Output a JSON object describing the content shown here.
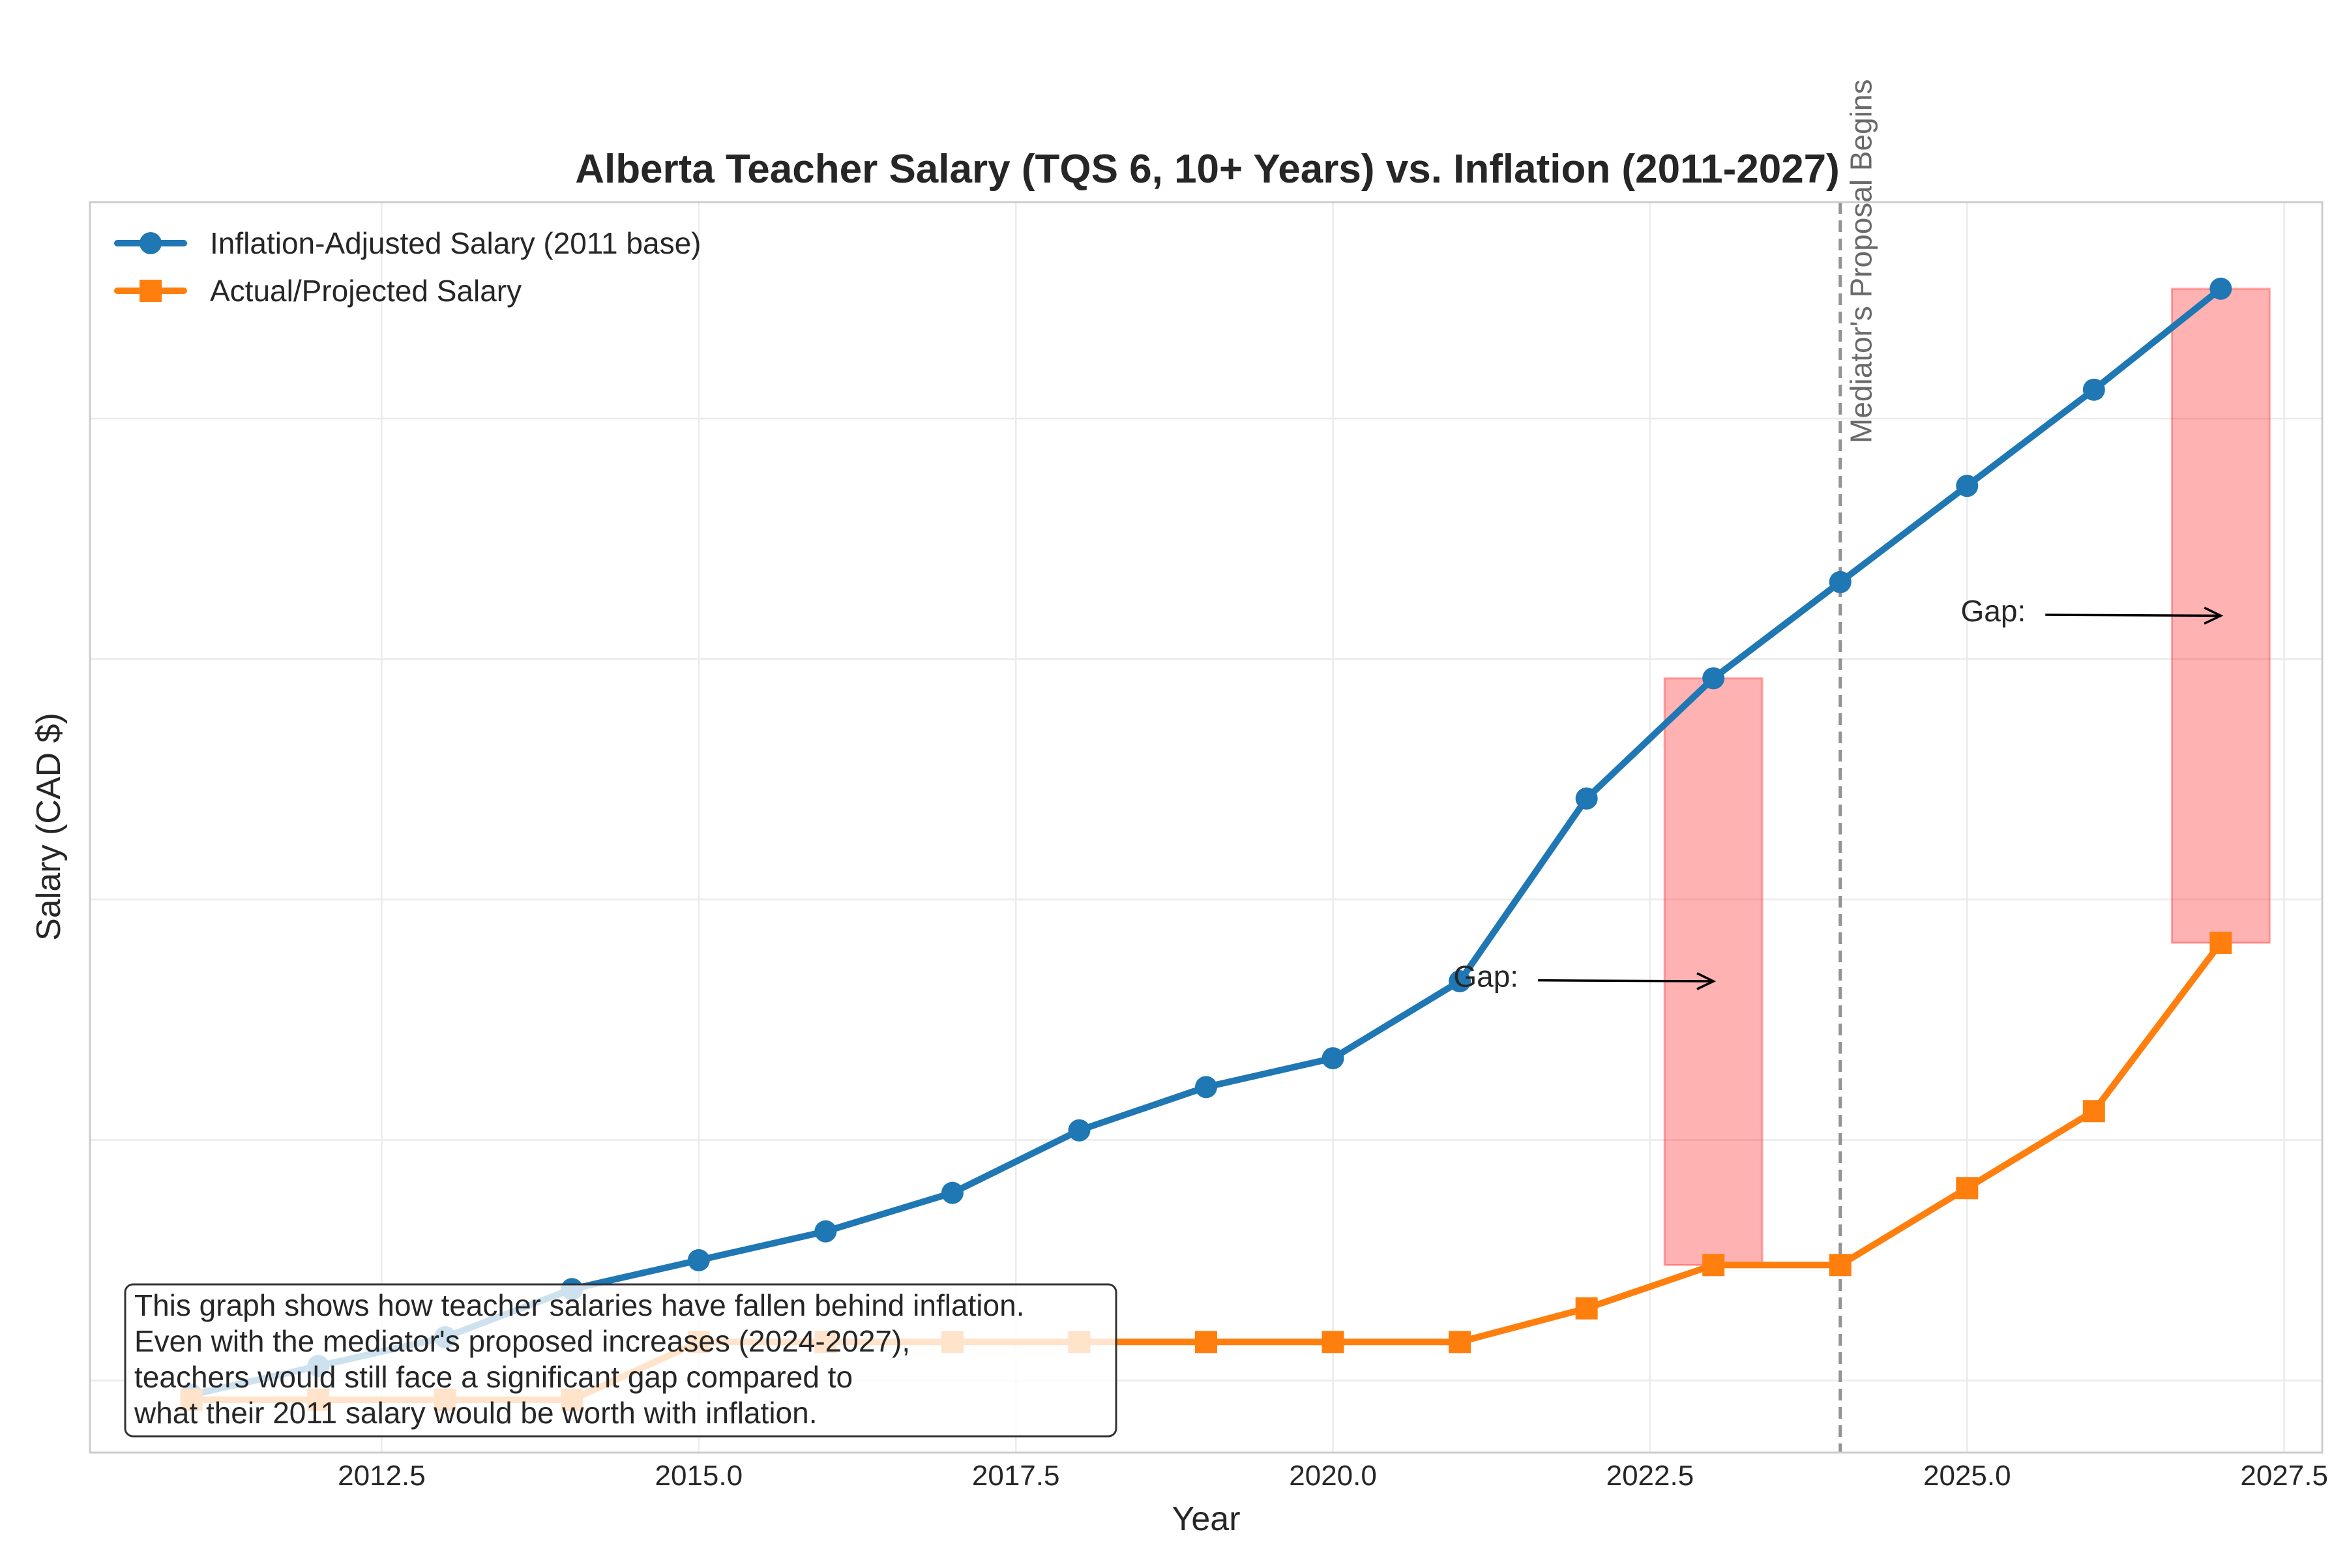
{
  "chart_data": {
    "type": "line",
    "title": "Alberta Teacher Salary (TQS 6, 10+ Years) vs. Inflation (2011-2027)",
    "xlabel": "Year",
    "ylabel": "Salary (CAD $)",
    "xlim": [
      2010.2,
      2027.8
    ],
    "ylim": [
      93000,
      119000
    ],
    "x_ticks": [
      2012.5,
      2015.0,
      2017.5,
      2020.0,
      2022.5,
      2025.0,
      2027.5
    ],
    "x_tick_labels": [
      "2012.5",
      "2015.0",
      "2017.5",
      "2020.0",
      "2022.5",
      "2025.0",
      "2027.5"
    ],
    "y_gridlines": [
      94500,
      99500,
      104500,
      109500,
      114500
    ],
    "y_tick_labels_visible": false,
    "grid": true,
    "legend_position": "top-left",
    "x": [
      2011,
      2012,
      2013,
      2014,
      2015,
      2016,
      2017,
      2018,
      2019,
      2020,
      2021,
      2022,
      2023,
      2024,
      2025,
      2026,
      2027
    ],
    "series": [
      {
        "name": "Inflation-Adjusted Salary (2011 base)",
        "color": "#1f77b4",
        "marker": "circle",
        "values": [
          94200,
          94800,
          95400,
          96400,
          97000,
          97600,
          98400,
          99700,
          100600,
          101200,
          102800,
          106600,
          109100,
          111100,
          113100,
          115100,
          117200
        ]
      },
      {
        "name": "Actual/Projected Salary",
        "color": "#ff7f0e",
        "marker": "square",
        "values": [
          94100,
          94100,
          94100,
          94100,
          95300,
          95300,
          95300,
          95300,
          95300,
          95300,
          95300,
          96000,
          96900,
          96900,
          98500,
          100100,
          103600
        ]
      }
    ],
    "gap_regions": [
      {
        "x": 2023,
        "low": 96900,
        "high": 109100,
        "color": "#ff0000"
      },
      {
        "x": 2027,
        "low": 103600,
        "high": 117200,
        "color": "#ff0000"
      }
    ],
    "annotations": [
      {
        "text": "Gap:",
        "arrow_to_x": 2023,
        "arrow_to_y": 102800,
        "text_x": 2021.0,
        "text_y": 102900
      },
      {
        "text": "Gap:",
        "arrow_to_x": 2027,
        "arrow_to_y": 110400,
        "text_x": 2025.0,
        "text_y": 110500
      }
    ],
    "vertical_line": {
      "x": 2024,
      "label": "Mediator's Proposal Begins",
      "color": "#808080"
    },
    "note_box": {
      "lines": [
        "This graph shows how teacher salaries have fallen behind inflation.",
        "Even with the mediator's proposed increases (2024-2027),",
        "teachers would still face a significant gap compared to",
        "what their 2011 salary would be worth with inflation."
      ]
    }
  }
}
